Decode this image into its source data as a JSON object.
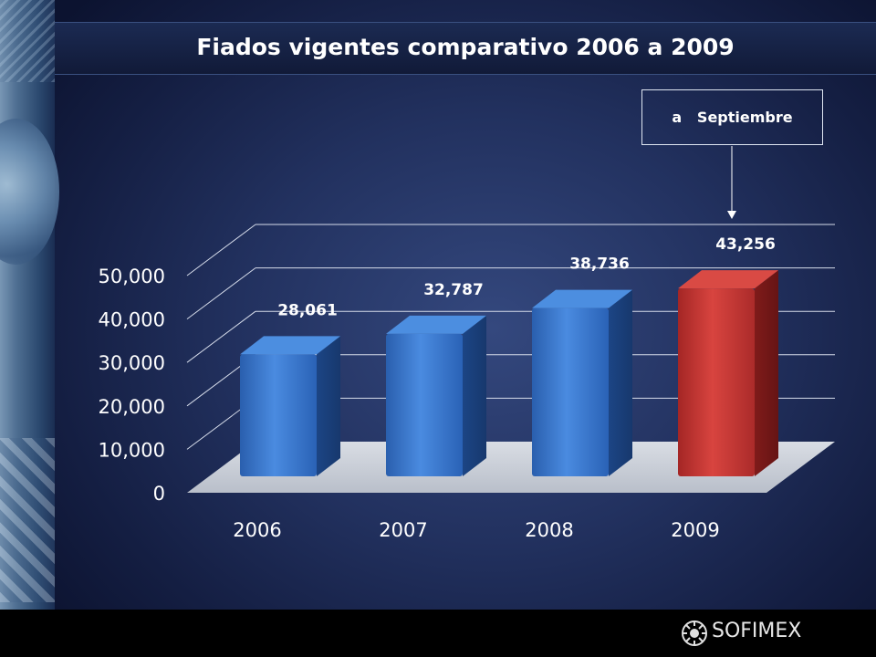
{
  "title": "Fiados vigentes comparativo 2006 a 2009",
  "note": "a   Septiembre",
  "logo_text": "SOFIMEX",
  "colors": {
    "bar_blue": "#2f6fc4",
    "bar_red": "#c0302f",
    "background": "#22315f"
  },
  "chart_data": {
    "type": "bar",
    "title": "Fiados vigentes comparativo 2006 a 2009",
    "categories": [
      "2006",
      "2007",
      "2008",
      "2009"
    ],
    "values": [
      28061,
      32787,
      38736,
      43256
    ],
    "value_labels": [
      "28,061",
      "32,787",
      "38,736",
      "43,256"
    ],
    "bar_colors": [
      "#2f6fc4",
      "#2f6fc4",
      "#2f6fc4",
      "#c0302f"
    ],
    "ylim": [
      0,
      50000
    ],
    "yticks": [
      0,
      10000,
      20000,
      30000,
      40000,
      50000
    ],
    "ytick_labels": [
      "0",
      "10,000",
      "20,000",
      "30,000",
      "40,000",
      "50,000"
    ],
    "xlabel": "",
    "ylabel": "",
    "grid": true,
    "style": "3d"
  }
}
